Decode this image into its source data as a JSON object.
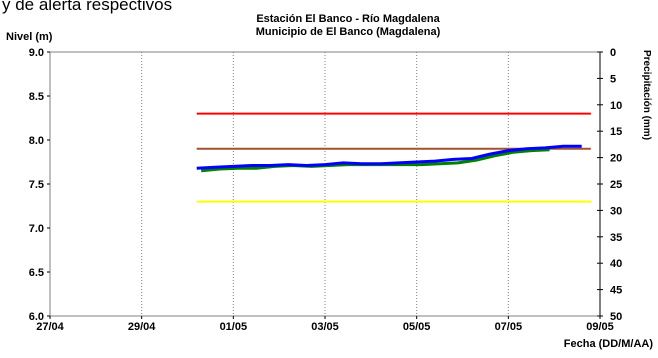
{
  "header_fragment": "y de alerta respectivos",
  "chart_data": {
    "type": "line",
    "title": "Estación El Banco - Río Magdalena",
    "subtitle": "Municipio de El Banco (Magdalena)",
    "ylabel": "Nivel (m)",
    "xlabel": "Fecha (DD/M/AA)",
    "y2label": "Precipitación (mm)",
    "x_ticks": [
      "27/04",
      "29/04",
      "01/05",
      "03/05",
      "05/05",
      "07/05",
      "09/05"
    ],
    "xlim": [
      0,
      12
    ],
    "ylim": [
      6.0,
      9.0
    ],
    "y_ticks": [
      "6.0",
      "6.5",
      "7.0",
      "7.5",
      "8.0",
      "8.5",
      "9.0"
    ],
    "y2lim": [
      0,
      50
    ],
    "y2_ticks": [
      "0",
      "5",
      "10",
      "15",
      "20",
      "25",
      "30",
      "35",
      "40",
      "45",
      "50"
    ],
    "y2_inverted": true,
    "grid": "vertical",
    "thresholds": [
      {
        "level": "red",
        "value": 8.3,
        "x": [
          3.2,
          11.8
        ],
        "color": "#ff0000"
      },
      {
        "level": "brown",
        "value": 7.9,
        "x": [
          3.2,
          11.8
        ],
        "color": "#a0522d"
      },
      {
        "level": "yellow",
        "value": 7.3,
        "x": [
          3.2,
          11.8
        ],
        "color": "#ffff00"
      }
    ],
    "series": [
      {
        "color": "#0000ff",
        "x": [
          3.2,
          3.6,
          4.0,
          4.4,
          4.8,
          5.2,
          5.6,
          6.0,
          6.4,
          6.8,
          7.2,
          7.6,
          8.0,
          8.4,
          8.8,
          9.2,
          9.6,
          10.0,
          10.4,
          10.8,
          11.2,
          11.6
        ],
        "values": [
          7.68,
          7.69,
          7.7,
          7.71,
          7.71,
          7.72,
          7.71,
          7.72,
          7.74,
          7.73,
          7.73,
          7.74,
          7.75,
          7.76,
          7.78,
          7.79,
          7.84,
          7.88,
          7.9,
          7.91,
          7.93,
          7.93
        ]
      },
      {
        "color": "#008000",
        "x": [
          3.3,
          3.7,
          4.1,
          4.5,
          4.9,
          5.3,
          5.7,
          6.1,
          6.5,
          6.9,
          7.3,
          7.7,
          8.1,
          8.5,
          8.9,
          9.3,
          9.7,
          10.1,
          10.5,
          10.9
        ],
        "values": [
          7.65,
          7.67,
          7.68,
          7.68,
          7.7,
          7.71,
          7.7,
          7.71,
          7.72,
          7.72,
          7.72,
          7.72,
          7.72,
          7.73,
          7.74,
          7.77,
          7.82,
          7.86,
          7.88,
          7.89
        ]
      }
    ]
  }
}
